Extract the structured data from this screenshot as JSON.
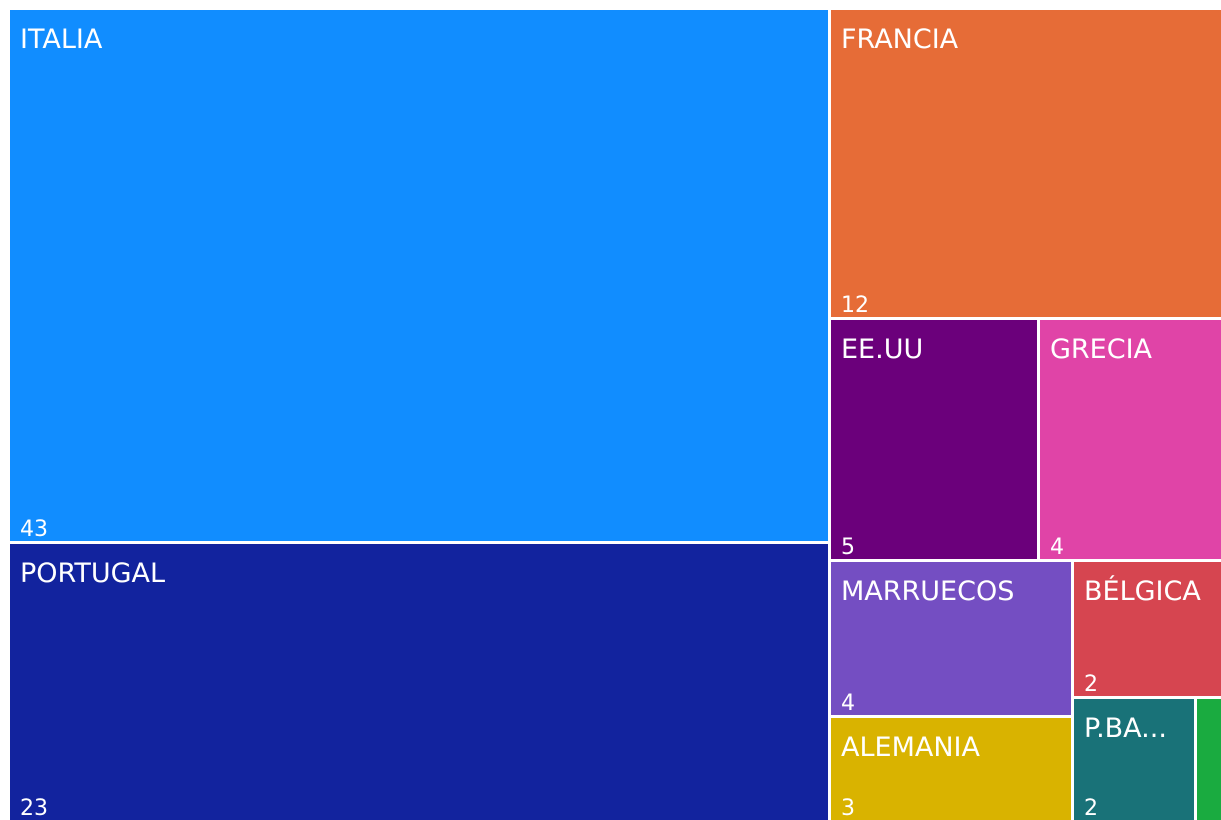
{
  "chart_data": {
    "type": "treemap",
    "items": [
      {
        "name": "ITALIA",
        "label": "ITALIA",
        "value": 43,
        "color": "#118DFF"
      },
      {
        "name": "PORTUGAL",
        "label": "PORTUGAL",
        "value": 23,
        "color": "#12239E"
      },
      {
        "name": "FRANCIA",
        "label": "FRANCIA",
        "value": 12,
        "color": "#E66C37"
      },
      {
        "name": "EE.UU",
        "label": "EE.UU",
        "value": 5,
        "color": "#6B007B"
      },
      {
        "name": "GRECIA",
        "label": "GRECIA",
        "value": 4,
        "color": "#E044A7"
      },
      {
        "name": "MARRUECOS",
        "label": "MARRUECOS",
        "value": 4,
        "color": "#744EC2"
      },
      {
        "name": "ALEMANIA",
        "label": "ALEMANIA",
        "value": 3,
        "color": "#D9B300"
      },
      {
        "name": "BÉLGICA",
        "label": "BÉLGICA",
        "value": 2,
        "color": "#D64550"
      },
      {
        "name": "P.BA...",
        "label": "P.BA...",
        "value": 2,
        "color": "#197278"
      },
      {
        "name": "",
        "label": "",
        "value": 1,
        "color": "#1AAB40"
      }
    ]
  }
}
